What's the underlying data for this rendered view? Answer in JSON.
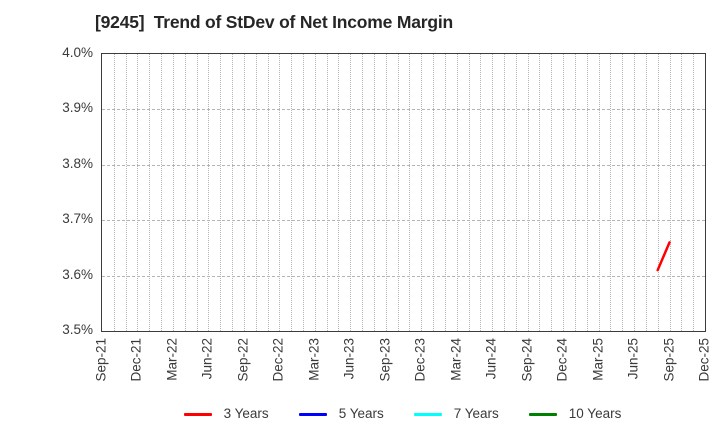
{
  "chart_data": {
    "type": "line",
    "title": "[9245]  Trend of StDev of Net Income Margin",
    "xlabel": "",
    "ylabel": "",
    "background": "#ffffff",
    "grid": {
      "horizontal": "dashed per 0.1%",
      "vertical": "dotted per month"
    },
    "y_axis": {
      "min": 3.5,
      "max": 4.0,
      "tick_step": 0.1,
      "unit": "%",
      "tick_labels": [
        "4.0%",
        "3.9%",
        "3.8%",
        "3.7%",
        "3.6%",
        "3.5%"
      ]
    },
    "x_axis": {
      "tick_labels": [
        "Sep-21",
        "Dec-21",
        "Mar-22",
        "Jun-22",
        "Sep-22",
        "Dec-22",
        "Mar-23",
        "Jun-23",
        "Sep-23",
        "Dec-23",
        "Mar-24",
        "Jun-24",
        "Sep-24",
        "Dec-24",
        "Mar-25",
        "Jun-25",
        "Sep-25",
        "Dec-25"
      ],
      "months_per_tick": 3,
      "total_months": 51,
      "first_month": "Sep-21",
      "last_month": "Dec-25"
    },
    "series": [
      {
        "name": "3 Years",
        "color": "#ff0000",
        "points": [
          {
            "month": "Aug-25",
            "month_index": 47,
            "value": 3.61
          },
          {
            "month": "Sep-25",
            "month_index": 48,
            "value": 3.66
          }
        ]
      },
      {
        "name": "5 Years",
        "color": "#0000ff",
        "points": []
      },
      {
        "name": "7 Years",
        "color": "#00ffff",
        "points": []
      },
      {
        "name": "10 Years",
        "color": "#008000",
        "points": []
      }
    ],
    "legend": {
      "position": "bottom-center",
      "entries": [
        "3 Years",
        "5 Years",
        "7 Years",
        "10 Years"
      ]
    }
  }
}
